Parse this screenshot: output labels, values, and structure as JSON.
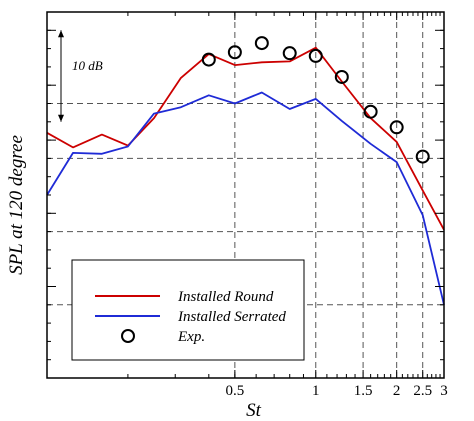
{
  "chart_data": {
    "type": "line",
    "xlabel": "St",
    "ylabel": "SPL at 120 degree",
    "x_scale": "log",
    "xlim": [
      0.1,
      3.0
    ],
    "ylim": [
      -32,
      8
    ],
    "grid": true,
    "x_ticks": [
      {
        "value": 0.5,
        "label": "0.5"
      },
      {
        "value": 1,
        "label": "1"
      },
      {
        "value": 1.5,
        "label": "1.5"
      },
      {
        "value": 2,
        "label": "2"
      },
      {
        "value": 2.5,
        "label": "2.5"
      },
      {
        "value": 3,
        "label": "3"
      }
    ],
    "x_gridlines": [
      0.5,
      1,
      1.5,
      2,
      2.5
    ],
    "y_gridlines": [
      -2,
      -8,
      -16,
      -24
    ],
    "y_major_ticks": [
      6,
      0,
      -6,
      -14,
      -22
    ],
    "annotation": {
      "text": "10 dB",
      "from": 6,
      "to": -4
    },
    "legend": {
      "position": "bottom-left"
    },
    "series": [
      {
        "name": "Installed Round",
        "color": "#cc0000",
        "style": "line",
        "x": [
          0.1,
          0.125,
          0.16,
          0.2,
          0.25,
          0.315,
          0.4,
          0.5,
          0.63,
          0.8,
          1.0,
          1.25,
          1.6,
          2.0,
          2.5,
          3.0
        ],
        "y": [
          -5.2,
          -6.8,
          -5.4,
          -6.6,
          -3.6,
          0.8,
          3.4,
          2.2,
          2.5,
          2.6,
          4.1,
          0.4,
          -3.6,
          -6.2,
          -11.5,
          -15.8
        ]
      },
      {
        "name": "Installed Serrated",
        "color": "#1f2bd6",
        "style": "line",
        "x": [
          0.1,
          0.125,
          0.16,
          0.2,
          0.25,
          0.315,
          0.4,
          0.5,
          0.63,
          0.8,
          1.0,
          1.25,
          1.6,
          2.0,
          2.5,
          3.0
        ],
        "y": [
          -12.0,
          -7.4,
          -7.5,
          -6.7,
          -3.1,
          -2.4,
          -1.1,
          -2.0,
          -0.8,
          -2.6,
          -1.5,
          -3.9,
          -6.4,
          -8.4,
          -14.2,
          -24.0
        ]
      },
      {
        "name": "Exp.",
        "color": "#000000",
        "style": "marker",
        "x": [
          0.4,
          0.5,
          0.63,
          0.8,
          1.0,
          1.25,
          1.6,
          2.0,
          2.5
        ],
        "y": [
          2.8,
          3.6,
          4.6,
          3.5,
          3.2,
          0.9,
          -2.9,
          -4.6,
          -7.8
        ]
      }
    ]
  }
}
